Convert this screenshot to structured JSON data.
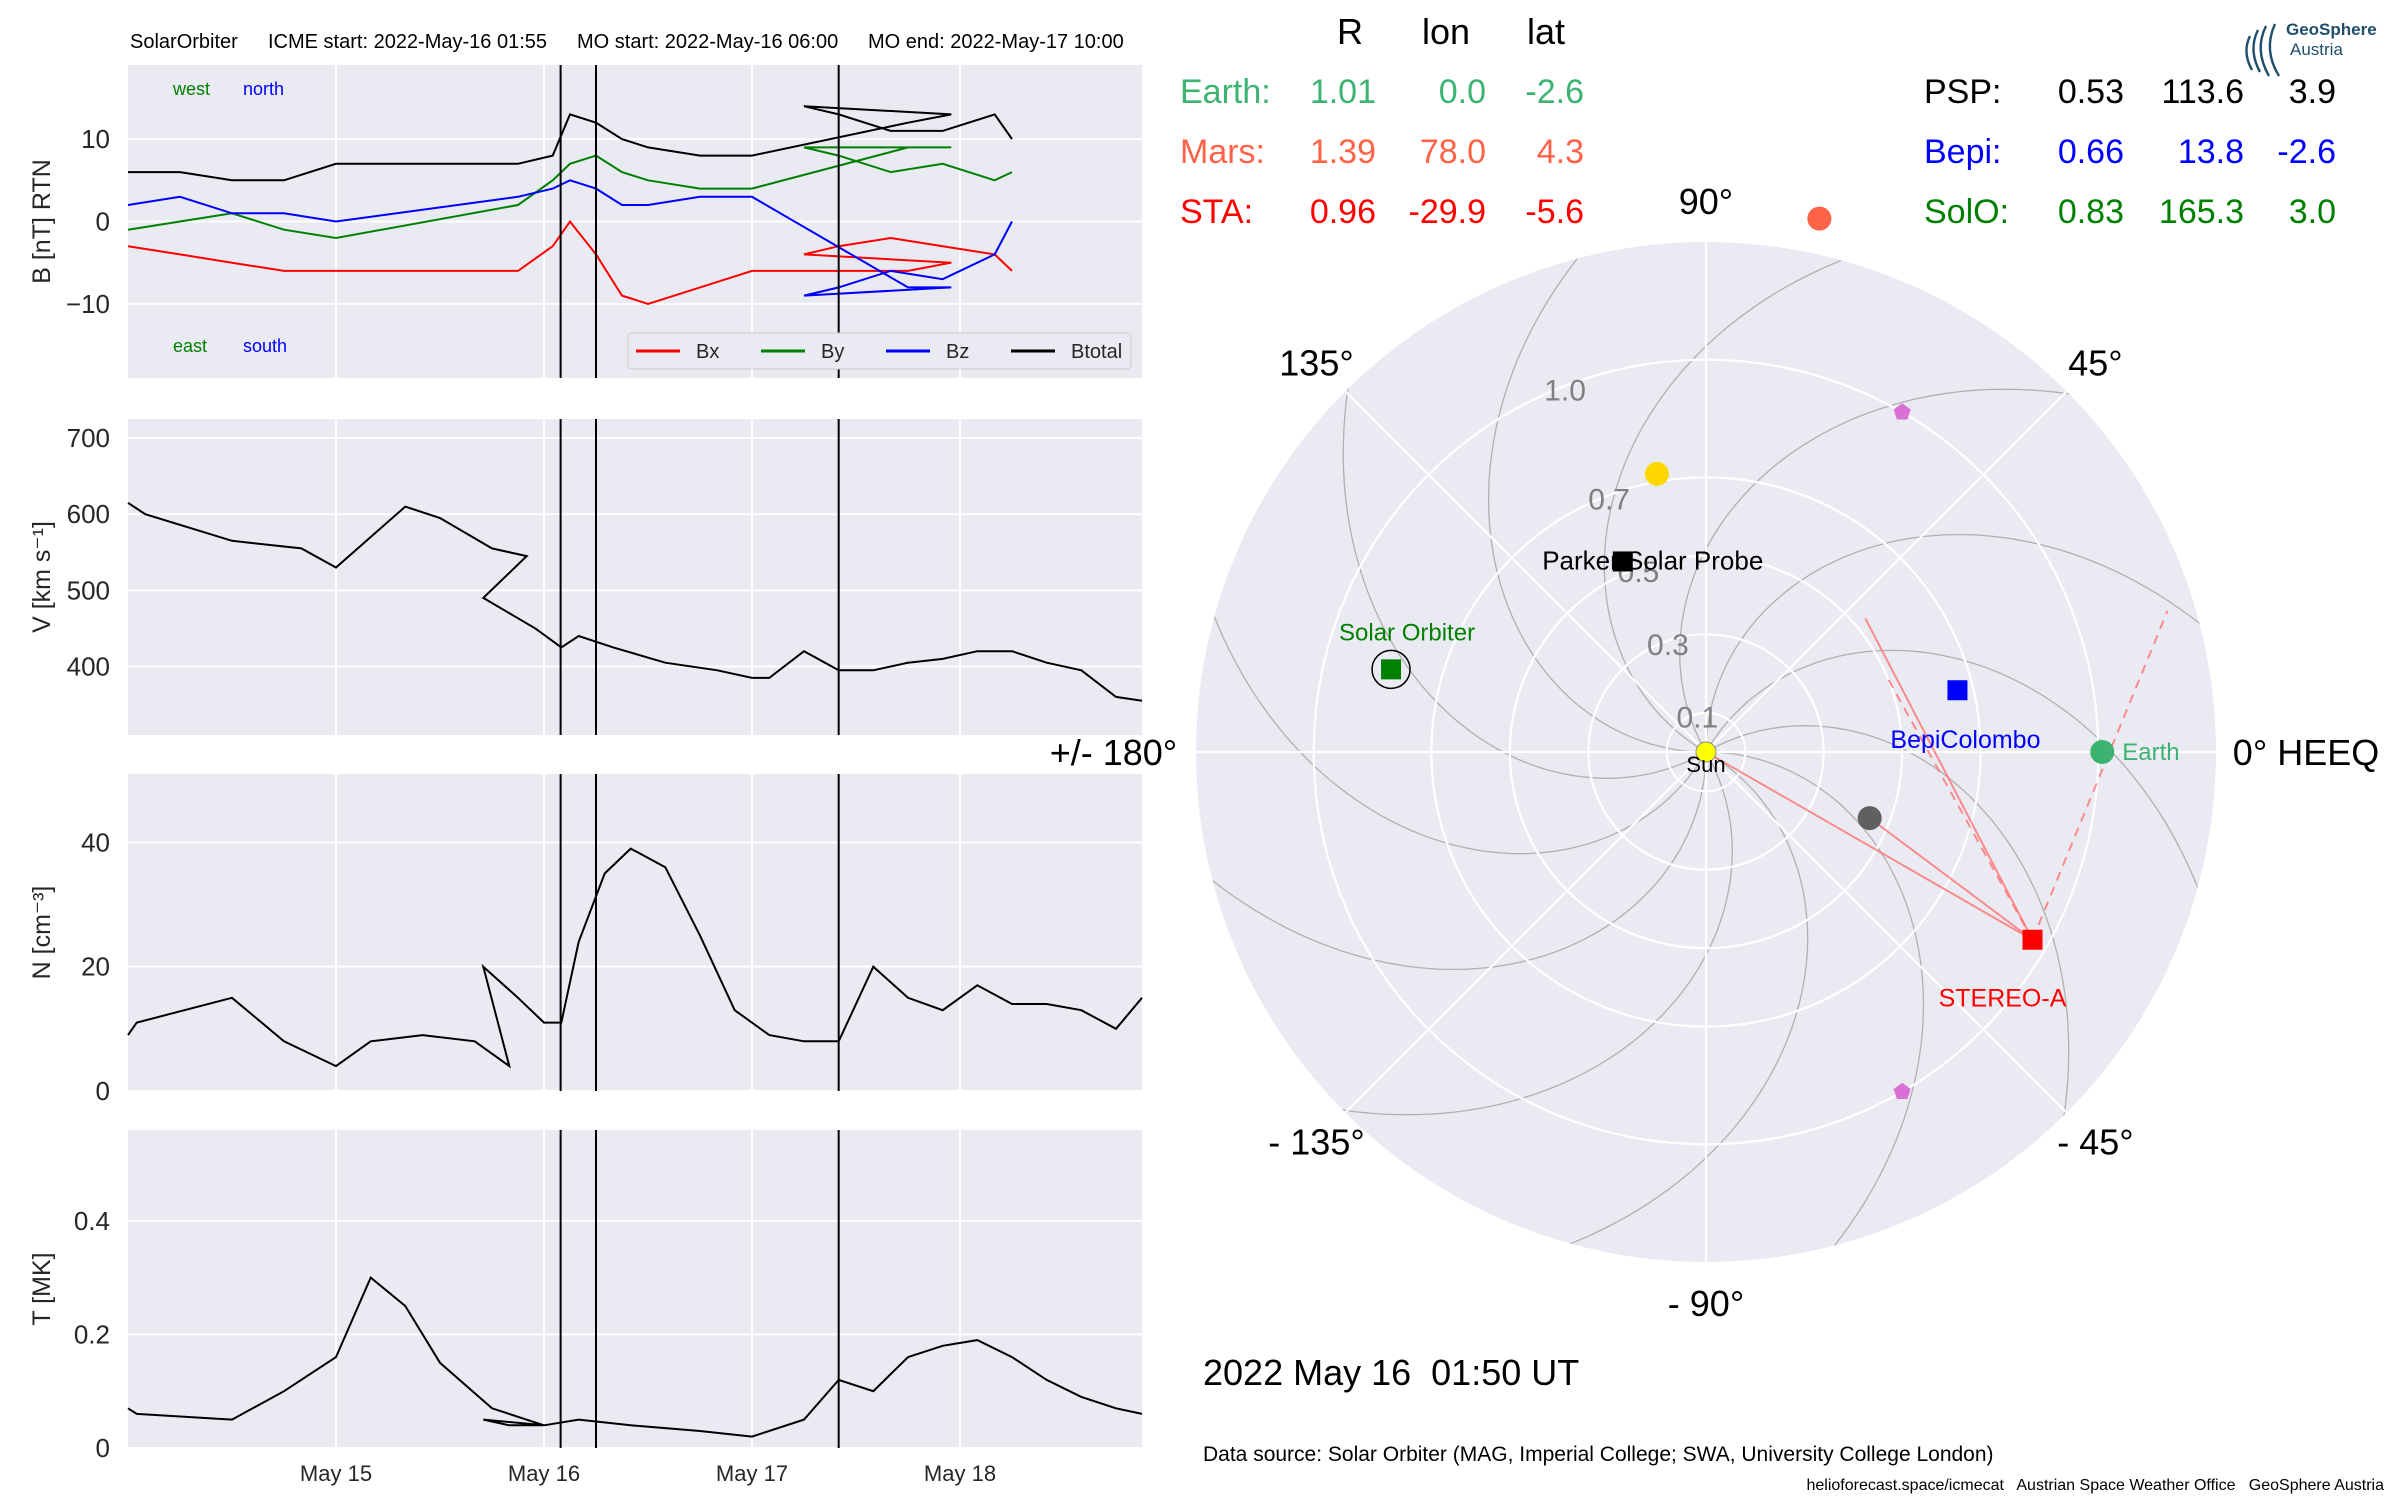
{
  "header": {
    "spacecraft": "SolarOrbiter",
    "icme_start": "ICME start: 2022-May-16 01:55",
    "mo_start": "MO start: 2022-May-16 06:00",
    "mo_end": "MO end: 2022-May-17 10:00"
  },
  "labels": {
    "west": "west",
    "north": "north",
    "east": "east",
    "south": "south",
    "legend": [
      "Bx",
      "By",
      "Bz",
      "Btotal"
    ]
  },
  "positions": {
    "headers": [
      "R",
      "lon",
      "lat"
    ],
    "left_rows": [
      {
        "name": "Earth:",
        "R": "1.01",
        "lon": "0.0",
        "lat": "-2.6",
        "color": "#3cb371"
      },
      {
        "name": "Mars:",
        "R": "1.39",
        "lon": "78.0",
        "lat": "4.3",
        "color": "#ff6347"
      },
      {
        "name": "STA:",
        "R": "0.96",
        "lon": "-29.9",
        "lat": "-5.6",
        "color": "#ff0000"
      }
    ],
    "right_rows": [
      {
        "name": "PSP:",
        "R": "0.53",
        "lon": "113.6",
        "lat": "3.9",
        "color": "#000000"
      },
      {
        "name": "Bepi:",
        "R": "0.66",
        "lon": "13.8",
        "lat": "-2.6",
        "color": "#0000ff"
      },
      {
        "name": "SolO:",
        "R": "0.83",
        "lon": "165.3",
        "lat": "3.0",
        "color": "#008000"
      }
    ]
  },
  "polar": {
    "angle_labels": [
      "0° HEEQ",
      "45°",
      "90°",
      "135°",
      "+/- 180°",
      "- 135°",
      "- 90°",
      "- 45°"
    ],
    "radial_labels": [
      "0.1",
      "0.3",
      "0.5",
      "0.7",
      "1.0"
    ],
    "bodies": [
      {
        "name": "Sun",
        "r": 0.0,
        "lon": 0,
        "color": "#ffff00",
        "marker": "circle"
      },
      {
        "name": "Earth",
        "r": 1.01,
        "lon": 0.0,
        "color": "#3cb371",
        "marker": "circle"
      },
      {
        "name": "Mars",
        "r": 1.39,
        "lon": 78.0,
        "color": "#ff6347",
        "marker": "circle"
      },
      {
        "name": "Mercury",
        "r": 0.45,
        "lon": -22,
        "color": "#606060",
        "marker": "circle"
      },
      {
        "name": "Venus",
        "r": 0.72,
        "lon": 100,
        "color": "#ffd700",
        "marker": "circle"
      },
      {
        "name": "Parker Solar Probe",
        "r": 0.53,
        "lon": 113.6,
        "color": "#000000",
        "marker": "square",
        "label_color": "#000000"
      },
      {
        "name": "BepiColombo",
        "r": 0.66,
        "lon": 13.8,
        "color": "#0000ff",
        "marker": "square",
        "label_color": "#0000ff"
      },
      {
        "name": "Solar Orbiter",
        "r": 0.83,
        "lon": 165.3,
        "color": "#008000",
        "marker": "square",
        "label_color": "#008000"
      },
      {
        "name": "STEREO-A",
        "r": 0.96,
        "lon": -29.9,
        "color": "#ff0000",
        "marker": "square",
        "label_color": "#ff0000"
      },
      {
        "name": "L4",
        "r": 1.0,
        "lon": 60,
        "color": "#da70d6",
        "marker": "pentagon"
      },
      {
        "name": "L5",
        "r": 1.0,
        "lon": -60,
        "color": "#da70d6",
        "marker": "pentagon"
      }
    ],
    "earth_label": "Earth"
  },
  "timestamp": "2022 May 16  01:50 UT",
  "footer": {
    "source": "Data source: Solar Orbiter (MAG, Imperial College; SWA, University College London)",
    "credits": "helioforecast.space/icmecat   Austrian Space Weather Office   GeoSphere Austria"
  },
  "logo": {
    "line1": "GeoSphere",
    "line2": "Austria"
  },
  "chart_data": [
    {
      "type": "line",
      "name": "magnetic-field",
      "ylabel": "B [nT] RTN",
      "xlim": [
        "2022-05-14 00:00",
        "2022-05-18 21:00"
      ],
      "ylim": [
        -19,
        19
      ],
      "yticks": [
        -10,
        0,
        10
      ],
      "xticks": [
        "May 15",
        "May 16",
        "May 17",
        "May 18"
      ],
      "vlines": [
        "2022-05-16 01:55",
        "2022-05-16 06:00",
        "2022-05-17 10:00"
      ],
      "series": [
        {
          "name": "Bx",
          "color": "#ff0000",
          "points": [
            [
              "2022-05-14 00:00",
              -3
            ],
            [
              "2022-05-14 06:00",
              -4
            ],
            [
              "2022-05-14 12:00",
              -5
            ],
            [
              "2022-05-14 18:00",
              -6
            ],
            [
              "2022-05-15 00:00",
              -6
            ],
            [
              "2022-05-15 21:00",
              -6
            ],
            [
              "2022-05-16 01:00",
              -3
            ],
            [
              "2022-05-16 03:00",
              0
            ],
            [
              "2022-05-16 06:00",
              -4
            ],
            [
              "2022-05-16 09:00",
              -9
            ],
            [
              "2022-05-16 12:00",
              -10
            ],
            [
              "2022-05-16 18:00",
              -8
            ],
            [
              "2022-05-17 00:00",
              -6
            ],
            [
              "2022-05-17 18:00",
              -6
            ],
            [
              "2022-05-17 23:00",
              -5
            ],
            [
              "2022-05-17 06:00",
              -4
            ],
            [
              "2022-05-17 10:00",
              -3
            ],
            [
              "2022-05-17 16:00",
              -2
            ],
            [
              "2022-05-17 22:00",
              -3
            ],
            [
              "2022-05-18 04:00",
              -4
            ],
            [
              "2022-05-18 06:00",
              -6
            ]
          ]
        },
        {
          "name": "By",
          "color": "#008000",
          "points": [
            [
              "2022-05-14 00:00",
              -1
            ],
            [
              "2022-05-14 06:00",
              0
            ],
            [
              "2022-05-14 12:00",
              1
            ],
            [
              "2022-05-14 18:00",
              -1
            ],
            [
              "2022-05-15 00:00",
              -2
            ],
            [
              "2022-05-15 21:00",
              2
            ],
            [
              "2022-05-16 01:00",
              5
            ],
            [
              "2022-05-16 03:00",
              7
            ],
            [
              "2022-05-16 06:00",
              8
            ],
            [
              "2022-05-16 09:00",
              6
            ],
            [
              "2022-05-16 12:00",
              5
            ],
            [
              "2022-05-16 18:00",
              4
            ],
            [
              "2022-05-17 00:00",
              4
            ],
            [
              "2022-05-17 18:00",
              9
            ],
            [
              "2022-05-17 23:00",
              9
            ],
            [
              "2022-05-17 06:00",
              9
            ],
            [
              "2022-05-17 10:00",
              8
            ],
            [
              "2022-05-17 16:00",
              6
            ],
            [
              "2022-05-17 22:00",
              7
            ],
            [
              "2022-05-18 04:00",
              5
            ],
            [
              "2022-05-18 06:00",
              6
            ]
          ]
        },
        {
          "name": "Bz",
          "color": "#0000ff",
          "points": [
            [
              "2022-05-14 00:00",
              2
            ],
            [
              "2022-05-14 06:00",
              3
            ],
            [
              "2022-05-14 12:00",
              1
            ],
            [
              "2022-05-14 18:00",
              1
            ],
            [
              "2022-05-15 00:00",
              0
            ],
            [
              "2022-05-15 21:00",
              3
            ],
            [
              "2022-05-16 01:00",
              4
            ],
            [
              "2022-05-16 03:00",
              5
            ],
            [
              "2022-05-16 06:00",
              4
            ],
            [
              "2022-05-16 09:00",
              2
            ],
            [
              "2022-05-16 12:00",
              2
            ],
            [
              "2022-05-16 18:00",
              3
            ],
            [
              "2022-05-17 00:00",
              3
            ],
            [
              "2022-05-17 18:00",
              -8
            ],
            [
              "2022-05-17 23:00",
              -8
            ],
            [
              "2022-05-17 06:00",
              -9
            ],
            [
              "2022-05-17 10:00",
              -8
            ],
            [
              "2022-05-17 16:00",
              -6
            ],
            [
              "2022-05-17 22:00",
              -7
            ],
            [
              "2022-05-18 04:00",
              -4
            ],
            [
              "2022-05-18 06:00",
              0
            ]
          ]
        },
        {
          "name": "Btotal",
          "color": "#000000",
          "points": [
            [
              "2022-05-14 00:00",
              6
            ],
            [
              "2022-05-14 06:00",
              6
            ],
            [
              "2022-05-14 12:00",
              5
            ],
            [
              "2022-05-14 18:00",
              5
            ],
            [
              "2022-05-15 00:00",
              7
            ],
            [
              "2022-05-15 21:00",
              7
            ],
            [
              "2022-05-16 01:00",
              8
            ],
            [
              "2022-05-16 03:00",
              13
            ],
            [
              "2022-05-16 06:00",
              12
            ],
            [
              "2022-05-16 09:00",
              10
            ],
            [
              "2022-05-16 12:00",
              9
            ],
            [
              "2022-05-16 18:00",
              8
            ],
            [
              "2022-05-17 00:00",
              8
            ],
            [
              "2022-05-17 18:00",
              12
            ],
            [
              "2022-05-17 23:00",
              13
            ],
            [
              "2022-05-17 06:00",
              14
            ],
            [
              "2022-05-17 10:00",
              13
            ],
            [
              "2022-05-17 16:00",
              11
            ],
            [
              "2022-05-17 22:00",
              11
            ],
            [
              "2022-05-18 04:00",
              13
            ],
            [
              "2022-05-18 06:00",
              10
            ]
          ]
        }
      ]
    },
    {
      "type": "line",
      "name": "speed",
      "ylabel": "V [km s⁻¹]",
      "ylim": [
        310,
        725
      ],
      "yticks": [
        400,
        500,
        600,
        700
      ],
      "series": [
        {
          "name": "V",
          "color": "#000000",
          "points": [
            [
              "2022-05-14 00:00",
              615
            ],
            [
              "2022-05-14 02:00",
              600
            ],
            [
              "2022-05-14 12:00",
              565
            ],
            [
              "2022-05-14 20:00",
              555
            ],
            [
              "2022-05-15 00:00",
              530
            ],
            [
              "2022-05-15 04:00",
              570
            ],
            [
              "2022-05-15 08:00",
              610
            ],
            [
              "2022-05-15 12:00",
              595
            ],
            [
              "2022-05-15 18:00",
              555
            ],
            [
              "2022-05-15 22:00",
              545
            ],
            [
              "2022-05-15 17:00",
              490
            ],
            [
              "2022-05-15 20:00",
              470
            ],
            [
              "2022-05-15 23:00",
              450
            ],
            [
              "2022-05-16 02:00",
              425
            ],
            [
              "2022-05-16 04:00",
              440
            ],
            [
              "2022-05-16 08:00",
              425
            ],
            [
              "2022-05-16 14:00",
              405
            ],
            [
              "2022-05-16 20:00",
              395
            ],
            [
              "2022-05-17 00:00",
              385
            ],
            [
              "2022-05-17 02:00",
              385
            ],
            [
              "2022-05-17 06:00",
              420
            ],
            [
              "2022-05-17 10:00",
              395
            ],
            [
              "2022-05-17 14:00",
              395
            ],
            [
              "2022-05-17 18:00",
              405
            ],
            [
              "2022-05-17 22:00",
              410
            ],
            [
              "2022-05-18 02:00",
              420
            ],
            [
              "2022-05-18 06:00",
              420
            ],
            [
              "2022-05-18 10:00",
              405
            ],
            [
              "2022-05-18 14:00",
              395
            ],
            [
              "2022-05-18 18:00",
              360
            ],
            [
              "2022-05-18 21:00",
              355
            ]
          ]
        }
      ]
    },
    {
      "type": "line",
      "name": "density",
      "ylabel": "N [cm⁻³]",
      "ylim": [
        0,
        51
      ],
      "yticks": [
        0,
        20,
        40
      ],
      "series": [
        {
          "name": "N",
          "color": "#000000",
          "points": [
            [
              "2022-05-14 00:00",
              9
            ],
            [
              "2022-05-14 01:00",
              11
            ],
            [
              "2022-05-14 12:00",
              15
            ],
            [
              "2022-05-14 18:00",
              8
            ],
            [
              "2022-05-15 00:00",
              4
            ],
            [
              "2022-05-15 04:00",
              8
            ],
            [
              "2022-05-15 10:00",
              9
            ],
            [
              "2022-05-15 16:00",
              8
            ],
            [
              "2022-05-15 20:00",
              4
            ],
            [
              "2022-05-15 17:00",
              20
            ],
            [
              "2022-05-15 21:00",
              15
            ],
            [
              "2022-05-16 00:00",
              11
            ],
            [
              "2022-05-16 02:00",
              11
            ],
            [
              "2022-05-16 04:00",
              24
            ],
            [
              "2022-05-16 07:00",
              35
            ],
            [
              "2022-05-16 10:00",
              39
            ],
            [
              "2022-05-16 14:00",
              36
            ],
            [
              "2022-05-16 18:00",
              25
            ],
            [
              "2022-05-16 22:00",
              13
            ],
            [
              "2022-05-17 02:00",
              9
            ],
            [
              "2022-05-17 06:00",
              8
            ],
            [
              "2022-05-17 10:00",
              8
            ],
            [
              "2022-05-17 14:00",
              20
            ],
            [
              "2022-05-17 18:00",
              15
            ],
            [
              "2022-05-17 22:00",
              13
            ],
            [
              "2022-05-18 02:00",
              17
            ],
            [
              "2022-05-18 06:00",
              14
            ],
            [
              "2022-05-18 10:00",
              14
            ],
            [
              "2022-05-18 14:00",
              13
            ],
            [
              "2022-05-18 18:00",
              10
            ],
            [
              "2022-05-18 21:00",
              15
            ]
          ]
        }
      ]
    },
    {
      "type": "line",
      "name": "temperature",
      "ylabel": "T [MK]",
      "ylim": [
        0,
        0.56
      ],
      "yticks": [
        0.0,
        0.2,
        0.4
      ],
      "series": [
        {
          "name": "T",
          "color": "#000000",
          "points": [
            [
              "2022-05-14 00:00",
              0.07
            ],
            [
              "2022-05-14 01:00",
              0.06
            ],
            [
              "2022-05-14 12:00",
              0.05
            ],
            [
              "2022-05-14 18:00",
              0.1
            ],
            [
              "2022-05-15 00:00",
              0.16
            ],
            [
              "2022-05-15 04:00",
              0.3
            ],
            [
              "2022-05-15 08:00",
              0.25
            ],
            [
              "2022-05-15 12:00",
              0.15
            ],
            [
              "2022-05-15 18:00",
              0.07
            ],
            [
              "2022-05-16 00:00",
              0.04
            ],
            [
              "2022-05-15 17:00",
              0.05
            ],
            [
              "2022-05-15 20:00",
              0.04
            ],
            [
              "2022-05-16 00:00",
              0.04
            ],
            [
              "2022-05-16 04:00",
              0.05
            ],
            [
              "2022-05-16 10:00",
              0.04
            ],
            [
              "2022-05-16 18:00",
              0.03
            ],
            [
              "2022-05-17 00:00",
              0.02
            ],
            [
              "2022-05-17 06:00",
              0.05
            ],
            [
              "2022-05-17 10:00",
              0.12
            ],
            [
              "2022-05-17 14:00",
              0.1
            ],
            [
              "2022-05-17 18:00",
              0.16
            ],
            [
              "2022-05-17 22:00",
              0.18
            ],
            [
              "2022-05-18 02:00",
              0.19
            ],
            [
              "2022-05-18 06:00",
              0.16
            ],
            [
              "2022-05-18 10:00",
              0.12
            ],
            [
              "2022-05-18 14:00",
              0.09
            ],
            [
              "2022-05-18 18:00",
              0.07
            ],
            [
              "2022-05-18 21:00",
              0.06
            ]
          ]
        }
      ]
    }
  ]
}
